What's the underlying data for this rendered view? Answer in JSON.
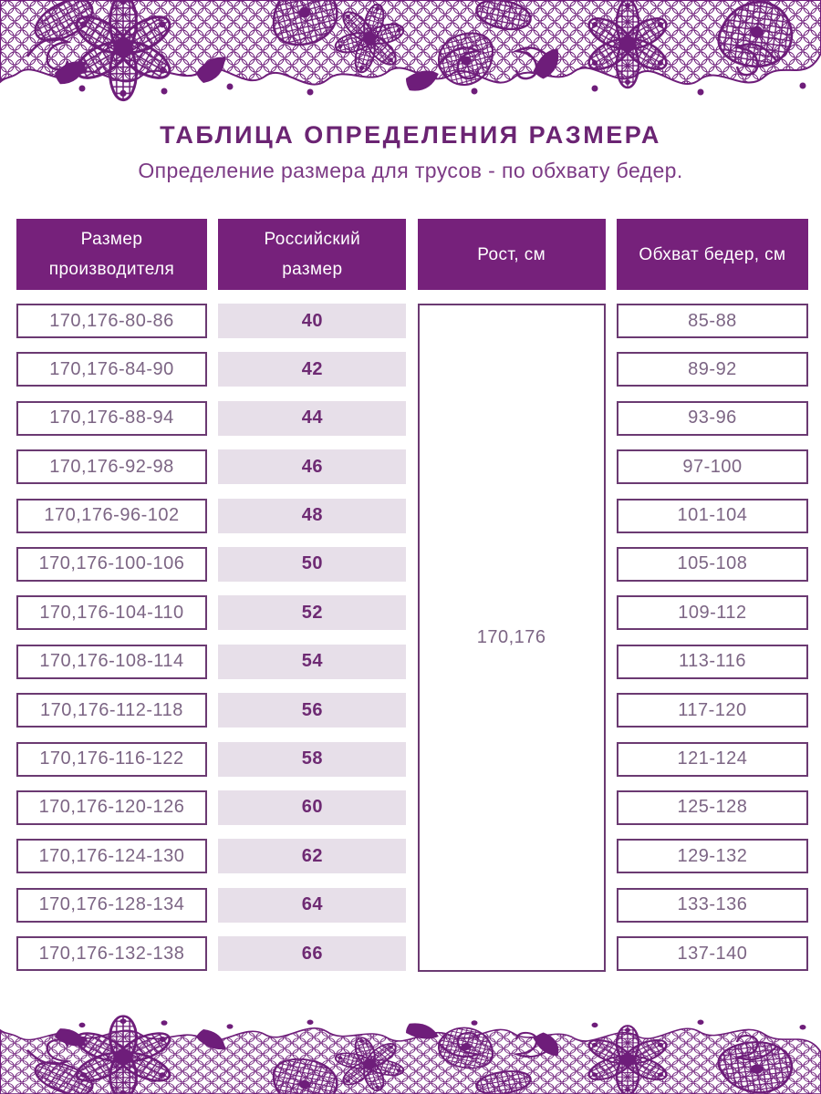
{
  "page": {
    "title": "ТАБЛИЦА ОПРЕДЕЛЕНИЯ РАЗМЕРА",
    "subtitle": "Определение размера для трусов - по обхвату бедер."
  },
  "table": {
    "headers": {
      "manufacturer_size": "Размер\nпроизводителя",
      "russian_size": "Российский\nразмер",
      "height": "Рост, см",
      "hip_girth": "Обхват бедер, см"
    },
    "height_value": "170,176",
    "rows": [
      {
        "manufacturer_size": "170,176-80-86",
        "russian_size": "40",
        "hip_girth": "85-88"
      },
      {
        "manufacturer_size": "170,176-84-90",
        "russian_size": "42",
        "hip_girth": "89-92"
      },
      {
        "manufacturer_size": "170,176-88-94",
        "russian_size": "44",
        "hip_girth": "93-96"
      },
      {
        "manufacturer_size": "170,176-92-98",
        "russian_size": "46",
        "hip_girth": "97-100"
      },
      {
        "manufacturer_size": "170,176-96-102",
        "russian_size": "48",
        "hip_girth": "101-104"
      },
      {
        "manufacturer_size": "170,176-100-106",
        "russian_size": "50",
        "hip_girth": "105-108"
      },
      {
        "manufacturer_size": "170,176-104-110",
        "russian_size": "52",
        "hip_girth": "109-112"
      },
      {
        "manufacturer_size": "170,176-108-114",
        "russian_size": "54",
        "hip_girth": "113-116"
      },
      {
        "manufacturer_size": "170,176-112-118",
        "russian_size": "56",
        "hip_girth": "117-120"
      },
      {
        "manufacturer_size": "170,176-116-122",
        "russian_size": "58",
        "hip_girth": "121-124"
      },
      {
        "manufacturer_size": "170,176-120-126",
        "russian_size": "60",
        "hip_girth": "125-128"
      },
      {
        "manufacturer_size": "170,176-124-130",
        "russian_size": "62",
        "hip_girth": "129-132"
      },
      {
        "manufacturer_size": "170,176-128-134",
        "russian_size": "64",
        "hip_girth": "133-136"
      },
      {
        "manufacturer_size": "170,176-132-138",
        "russian_size": "66",
        "hip_girth": "137-140"
      }
    ]
  },
  "colors": {
    "lace_purple": "#6e1d7a",
    "header_background": "#76217b",
    "cell_border": "#6b3a72",
    "cell_text": "#7c6584",
    "russian_size_background": "#e7dfe9",
    "russian_size_text": "#6e2a73",
    "title_text": "#6b2473",
    "subtitle_text": "#7c3a85"
  }
}
